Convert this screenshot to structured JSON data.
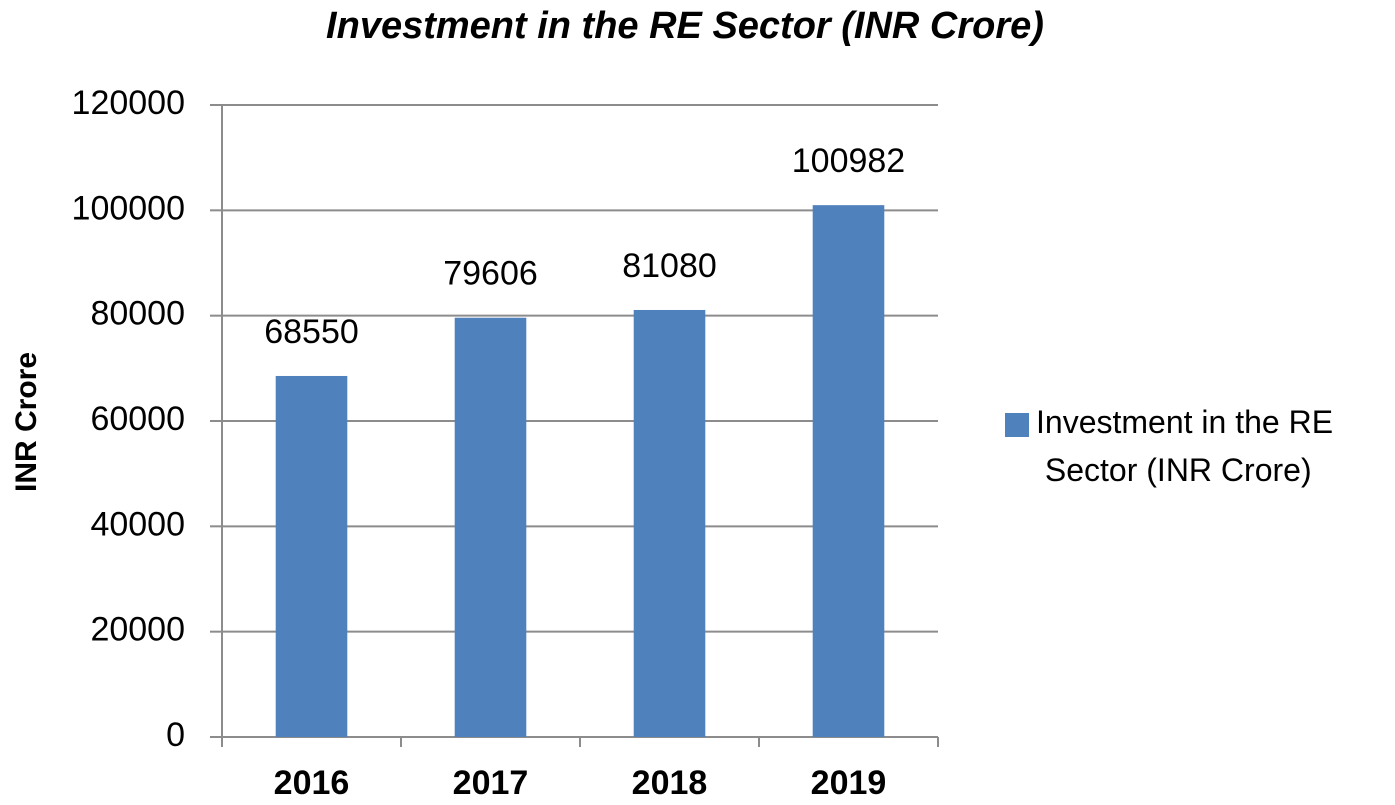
{
  "chart_data": {
    "type": "bar",
    "title": "Investment in the RE Sector (INR Crore)",
    "y_label": "INR Crore",
    "categories": [
      "2016",
      "2017",
      "2018",
      "2019"
    ],
    "series": [
      {
        "name": "Investment in the RE Sector (INR Crore)",
        "color": "#4f81bd",
        "values": [
          68550,
          79606,
          81080,
          100982
        ]
      }
    ],
    "ylim": [
      0,
      120000
    ],
    "yticks": [
      0,
      20000,
      40000,
      60000,
      80000,
      100000,
      120000
    ],
    "grid": true,
    "legend": "right"
  }
}
